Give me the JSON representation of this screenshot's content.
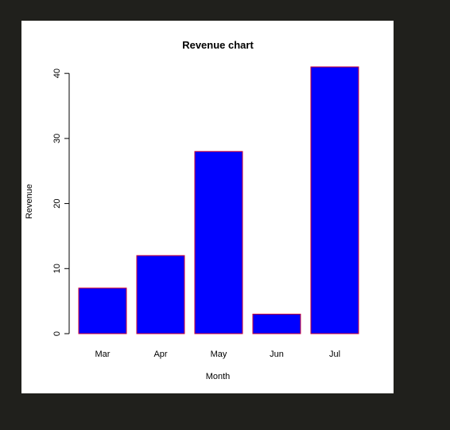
{
  "chart_data": {
    "type": "bar",
    "title": "Revenue chart",
    "xlabel": "Month",
    "ylabel": "Revenue",
    "categories": [
      "Mar",
      "Apr",
      "May",
      "Jun",
      "Jul"
    ],
    "values": [
      7,
      12,
      28,
      3,
      41
    ],
    "ylim": [
      0,
      41
    ],
    "yticks": [
      0,
      10,
      20,
      30,
      40
    ],
    "grid": false,
    "legend": "none",
    "bar_fill_color": "#0000ff",
    "bar_border_color": "#cc0033",
    "background_color": "#ffffff",
    "page_background_color": "#20201c"
  }
}
